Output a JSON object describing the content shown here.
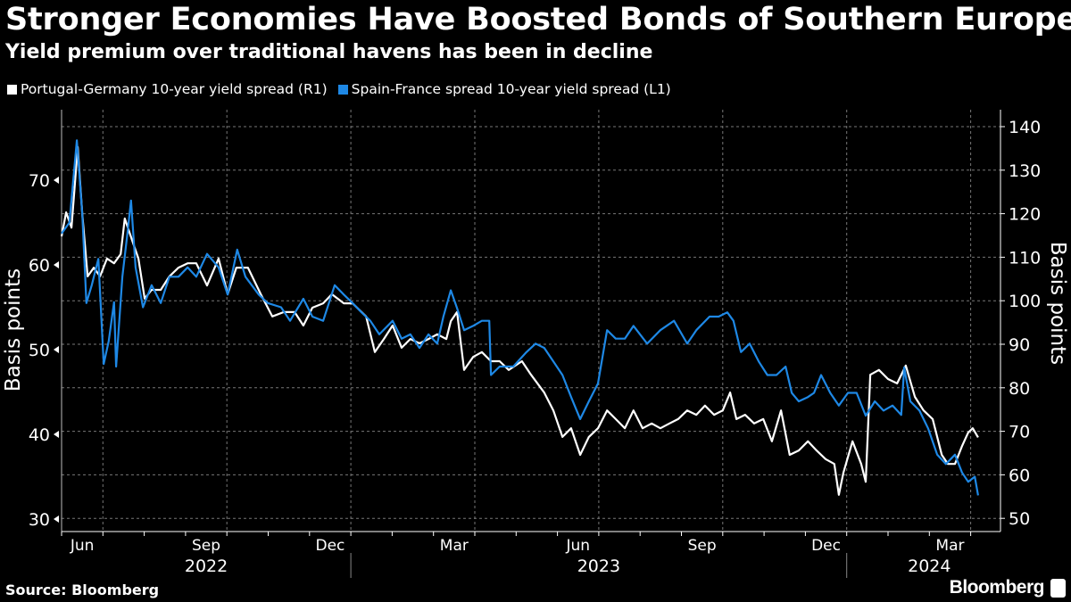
{
  "header": {
    "title": "Stronger Economies Have Boosted Bonds of Southern Europe",
    "subtitle": "Yield premium over traditional havens has been in decline"
  },
  "footer": {
    "source": "Source: Bloomberg",
    "brand": "Bloomberg"
  },
  "colors": {
    "portugal": "#ffffff",
    "spain": "#1e88e5",
    "background": "#000000",
    "grid": "#777777"
  },
  "chart_data": {
    "type": "line",
    "title": "Stronger Economies Have Boosted Bonds of Southern Europe",
    "subtitle": "Yield premium over traditional havens has been in decline",
    "x_unit": "months since 2022-06-01",
    "xlim": [
      0,
      22.7
    ],
    "x_month_labels": [
      {
        "label": "Jun",
        "month": 0.5
      },
      {
        "label": "Sep",
        "month": 3.5
      },
      {
        "label": "Dec",
        "month": 6.5
      },
      {
        "label": "Mar",
        "month": 9.5
      },
      {
        "label": "Jun",
        "month": 12.5
      },
      {
        "label": "Sep",
        "month": 15.5
      },
      {
        "label": "Dec",
        "month": 18.5
      },
      {
        "label": "Mar",
        "month": 21.5
      }
    ],
    "x_year_labels": [
      {
        "label": "2022",
        "month": 3.5
      },
      {
        "label": "2023",
        "month": 13
      },
      {
        "label": "2024",
        "month": 21
      }
    ],
    "year_boundaries": [
      7,
      19
    ],
    "left_axis": {
      "label": "Basis points",
      "ticks": [
        30,
        40,
        50,
        60,
        70
      ],
      "ylim": [
        28,
        79.5
      ]
    },
    "right_axis": {
      "label": "Basis points",
      "ticks": [
        50,
        60,
        70,
        80,
        90,
        100,
        110,
        120,
        130,
        140
      ],
      "ylim": [
        46,
        145
      ]
    },
    "grid": true,
    "legend_position": "top-left",
    "series": [
      {
        "name": "Portugal-Germany 10-year yield spread (R1)",
        "axis": "right",
        "color": "#ffffff",
        "points": [
          [
            0,
            114.8
          ],
          [
            0.11,
            120.3
          ],
          [
            0.24,
            116.8
          ],
          [
            0.39,
            135.3
          ],
          [
            0.5,
            119.9
          ],
          [
            0.63,
            105.6
          ],
          [
            0.78,
            107.6
          ],
          [
            0.93,
            105.6
          ],
          [
            1.1,
            109.7
          ],
          [
            1.27,
            108.6
          ],
          [
            1.43,
            110.7
          ],
          [
            1.53,
            118.9
          ],
          [
            1.71,
            113.8
          ],
          [
            1.86,
            109.7
          ],
          [
            2.01,
            100.5
          ],
          [
            2.18,
            102.5
          ],
          [
            2.4,
            102.5
          ],
          [
            2.61,
            105.6
          ],
          [
            2.83,
            107.6
          ],
          [
            3.05,
            108.6
          ],
          [
            3.26,
            108.6
          ],
          [
            3.52,
            103.5
          ],
          [
            3.8,
            109.7
          ],
          [
            4.02,
            101.5
          ],
          [
            4.23,
            107.6
          ],
          [
            4.51,
            107.6
          ],
          [
            4.82,
            101.5
          ],
          [
            5.1,
            96.4
          ],
          [
            5.38,
            97.4
          ],
          [
            5.64,
            97.4
          ],
          [
            5.85,
            94.3
          ],
          [
            6.07,
            98.4
          ],
          [
            6.33,
            99.4
          ],
          [
            6.54,
            101.5
          ],
          [
            6.83,
            99.4
          ],
          [
            7.04,
            99.4
          ],
          [
            7.37,
            96.4
          ],
          [
            7.58,
            88.2
          ],
          [
            7.8,
            91.2
          ],
          [
            8.01,
            94.3
          ],
          [
            8.23,
            89.2
          ],
          [
            8.44,
            91.2
          ],
          [
            8.66,
            90.2
          ],
          [
            8.88,
            91.2
          ],
          [
            9.09,
            92.3
          ],
          [
            9.31,
            91.2
          ],
          [
            9.42,
            95.3
          ],
          [
            9.57,
            97.4
          ],
          [
            9.74,
            84.1
          ],
          [
            9.96,
            87.1
          ],
          [
            10.17,
            88.2
          ],
          [
            10.39,
            86.1
          ],
          [
            10.6,
            86.1
          ],
          [
            10.82,
            84.1
          ],
          [
            11.14,
            86.1
          ],
          [
            11.36,
            83
          ],
          [
            11.68,
            78.9
          ],
          [
            11.9,
            74.8
          ],
          [
            12.12,
            68.7
          ],
          [
            12.33,
            70.7
          ],
          [
            12.55,
            64.6
          ],
          [
            12.76,
            68.7
          ],
          [
            12.98,
            70.7
          ],
          [
            13.2,
            74.8
          ],
          [
            13.41,
            72.8
          ],
          [
            13.63,
            70.7
          ],
          [
            13.84,
            74.8
          ],
          [
            14.06,
            70.7
          ],
          [
            14.28,
            71.8
          ],
          [
            14.49,
            70.7
          ],
          [
            14.71,
            71.8
          ],
          [
            14.92,
            72.8
          ],
          [
            15.14,
            74.8
          ],
          [
            15.36,
            73.8
          ],
          [
            15.57,
            75.9
          ],
          [
            15.79,
            73.8
          ],
          [
            16,
            74.8
          ],
          [
            16.18,
            78.9
          ],
          [
            16.33,
            72.8
          ],
          [
            16.54,
            73.8
          ],
          [
            16.76,
            71.8
          ],
          [
            16.98,
            72.8
          ],
          [
            17.19,
            67.7
          ],
          [
            17.41,
            74.8
          ],
          [
            17.62,
            64.6
          ],
          [
            17.84,
            65.6
          ],
          [
            18.06,
            67.7
          ],
          [
            18.27,
            65.6
          ],
          [
            18.49,
            63.6
          ],
          [
            18.7,
            62.5
          ],
          [
            18.81,
            55.4
          ],
          [
            18.92,
            60.5
          ],
          [
            19.14,
            67.7
          ],
          [
            19.35,
            62.5
          ],
          [
            19.46,
            58.4
          ],
          [
            19.57,
            83
          ],
          [
            19.78,
            84.1
          ],
          [
            20,
            82
          ],
          [
            20.22,
            81
          ],
          [
            20.43,
            85.1
          ],
          [
            20.65,
            77.9
          ],
          [
            20.86,
            74.8
          ],
          [
            21.08,
            72.8
          ],
          [
            21.3,
            64.6
          ],
          [
            21.45,
            62.5
          ],
          [
            21.62,
            62.5
          ],
          [
            21.79,
            66.6
          ],
          [
            21.94,
            69.7
          ],
          [
            22.05,
            70.7
          ],
          [
            22.18,
            68.6
          ]
        ]
      },
      {
        "name": "Spain-France spread 10-year yield spread (L1)",
        "axis": "left",
        "color": "#1e88e5",
        "points": [
          [
            0,
            63.7
          ],
          [
            0.19,
            65
          ],
          [
            0.37,
            74.7
          ],
          [
            0.5,
            66
          ],
          [
            0.6,
            55.5
          ],
          [
            0.73,
            57.6
          ],
          [
            0.89,
            60.7
          ],
          [
            1.02,
            48.3
          ],
          [
            1.14,
            51
          ],
          [
            1.27,
            55.6
          ],
          [
            1.32,
            48
          ],
          [
            1.47,
            58.6
          ],
          [
            1.6,
            64
          ],
          [
            1.68,
            67.6
          ],
          [
            1.79,
            59.7
          ],
          [
            1.97,
            55
          ],
          [
            2.18,
            57.6
          ],
          [
            2.4,
            55.5
          ],
          [
            2.61,
            58.6
          ],
          [
            2.83,
            58.6
          ],
          [
            3.05,
            59.7
          ],
          [
            3.26,
            58.6
          ],
          [
            3.52,
            61.3
          ],
          [
            3.8,
            59.7
          ],
          [
            4.02,
            56.5
          ],
          [
            4.25,
            61.8
          ],
          [
            4.45,
            58.6
          ],
          [
            4.77,
            56.5
          ],
          [
            4.99,
            55.5
          ],
          [
            5.31,
            55
          ],
          [
            5.53,
            53.4
          ],
          [
            5.85,
            56
          ],
          [
            6.07,
            53.9
          ],
          [
            6.33,
            53.4
          ],
          [
            6.61,
            57.6
          ],
          [
            6.83,
            56.5
          ],
          [
            7.04,
            55.5
          ],
          [
            7.26,
            54.4
          ],
          [
            7.47,
            53.4
          ],
          [
            7.69,
            51.8
          ],
          [
            8.01,
            53.4
          ],
          [
            8.23,
            51.3
          ],
          [
            8.44,
            51.8
          ],
          [
            8.66,
            50.2
          ],
          [
            8.88,
            51.8
          ],
          [
            9.09,
            50.7
          ],
          [
            9.24,
            53.9
          ],
          [
            9.42,
            57
          ],
          [
            9.57,
            54.9
          ],
          [
            9.74,
            52.3
          ],
          [
            9.96,
            52.8
          ],
          [
            10.17,
            53.4
          ],
          [
            10.35,
            53.4
          ],
          [
            10.39,
            47
          ],
          [
            10.6,
            48
          ],
          [
            10.93,
            48
          ],
          [
            11.25,
            49.7
          ],
          [
            11.47,
            50.7
          ],
          [
            11.68,
            50.2
          ],
          [
            11.9,
            48.6
          ],
          [
            12.12,
            47
          ],
          [
            12.33,
            44.4
          ],
          [
            12.55,
            41.8
          ],
          [
            12.76,
            43.9
          ],
          [
            12.98,
            46
          ],
          [
            13.2,
            52.3
          ],
          [
            13.41,
            51.3
          ],
          [
            13.63,
            51.3
          ],
          [
            13.84,
            52.8
          ],
          [
            14.17,
            50.7
          ],
          [
            14.49,
            52.3
          ],
          [
            14.82,
            53.4
          ],
          [
            15.14,
            50.7
          ],
          [
            15.36,
            52.3
          ],
          [
            15.68,
            53.9
          ],
          [
            15.9,
            53.9
          ],
          [
            16.11,
            54.4
          ],
          [
            16.26,
            53.4
          ],
          [
            16.44,
            49.7
          ],
          [
            16.65,
            50.7
          ],
          [
            16.87,
            48.6
          ],
          [
            17.08,
            47
          ],
          [
            17.3,
            47
          ],
          [
            17.52,
            48
          ],
          [
            17.67,
            44.9
          ],
          [
            17.84,
            43.9
          ],
          [
            18.06,
            44.4
          ],
          [
            18.21,
            44.9
          ],
          [
            18.38,
            47
          ],
          [
            18.6,
            44.9
          ],
          [
            18.81,
            43.4
          ],
          [
            19.03,
            44.9
          ],
          [
            19.24,
            44.9
          ],
          [
            19.46,
            42.2
          ],
          [
            19.68,
            43.9
          ],
          [
            19.89,
            42.8
          ],
          [
            20.11,
            43.4
          ],
          [
            20.32,
            42.3
          ],
          [
            20.39,
            47.9
          ],
          [
            20.54,
            43.9
          ],
          [
            20.76,
            42.8
          ],
          [
            20.97,
            40.7
          ],
          [
            21.19,
            37.6
          ],
          [
            21.4,
            36.5
          ],
          [
            21.62,
            37.6
          ],
          [
            21.79,
            35.5
          ],
          [
            21.94,
            34.4
          ],
          [
            22.1,
            35
          ],
          [
            22.18,
            32.8
          ]
        ]
      }
    ]
  }
}
